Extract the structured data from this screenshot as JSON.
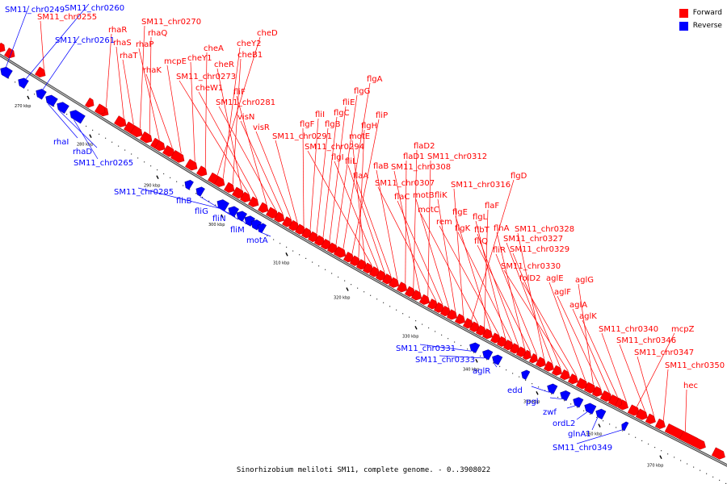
{
  "caption": "Sinorhizobium meliloti SM11, complete genome. - 0..3908022",
  "legend": [
    {
      "label": "Forward",
      "color": "#ff0000"
    },
    {
      "label": "Reverse",
      "color": "#0000ff"
    }
  ],
  "colors": {
    "forward": "#ff0000",
    "reverse": "#0000ff",
    "backbone": "#888888"
  },
  "ticks": [
    "270 kbp",
    "280 kbp",
    "290 kbp",
    "300 kbp",
    "310 kbp",
    "320 kbp",
    "330 kbp",
    "340 kbp",
    "350 kbp",
    "360 kbp",
    "370 kbp"
  ],
  "forward_labels": [
    "SM11_chr0255",
    "rhaR",
    "rhaS",
    "rhaT",
    "SM11_chr0270",
    "rhaQ",
    "rhaP",
    "rhaK",
    "mcpE",
    "cheY1",
    "cheA",
    "cheD",
    "cheY2",
    "cheB1",
    "cheR",
    "SM11_chr0273",
    "cheW1",
    "fliF",
    "SM11_chr0281",
    "visN",
    "visR",
    "SM11_chr0291",
    "flgF",
    "fliI",
    "flgB",
    "flgC",
    "fliE",
    "flgG",
    "flgA",
    "fliP",
    "flgH",
    "motE",
    "SM11_chr0294",
    "flgI",
    "fliL",
    "flaA",
    "flaB",
    "flaD1",
    "flaD2",
    "SM11_chr0308",
    "SM11_chr0312",
    "SM11_chr0307",
    "flaC",
    "motB",
    "fliK",
    "SM11_chr0316",
    "flgD",
    "motC",
    "flaF",
    "flgE",
    "rem",
    "flgL",
    "flgK",
    "flbT",
    "flhA",
    "fliQ",
    "fliR",
    "SM11_chr0328",
    "SM11_chr0327",
    "SM11_chr0329",
    "SM11_chr0330",
    "folD2",
    "aglE",
    "aglG",
    "aglF",
    "aglA",
    "aglK",
    "SM11_chr0340",
    "mcpZ",
    "SM11_chr0346",
    "SM11_chr0347",
    "SM11_chr0350",
    "hec"
  ],
  "reverse_labels": [
    "SM11_chr0249",
    "SM11_chr0260",
    "SM11_chr0261",
    "rhaI",
    "rhaD",
    "SM11_chr0265",
    "SM11_chr0285",
    "flhB",
    "fliG",
    "fliN",
    "fliM",
    "motA",
    "SM11_chr0331",
    "SM11_chr0333",
    "aglR",
    "edd",
    "pgl",
    "zwf",
    "ordL2",
    "glnA1",
    "SM11_chr0349"
  ]
}
